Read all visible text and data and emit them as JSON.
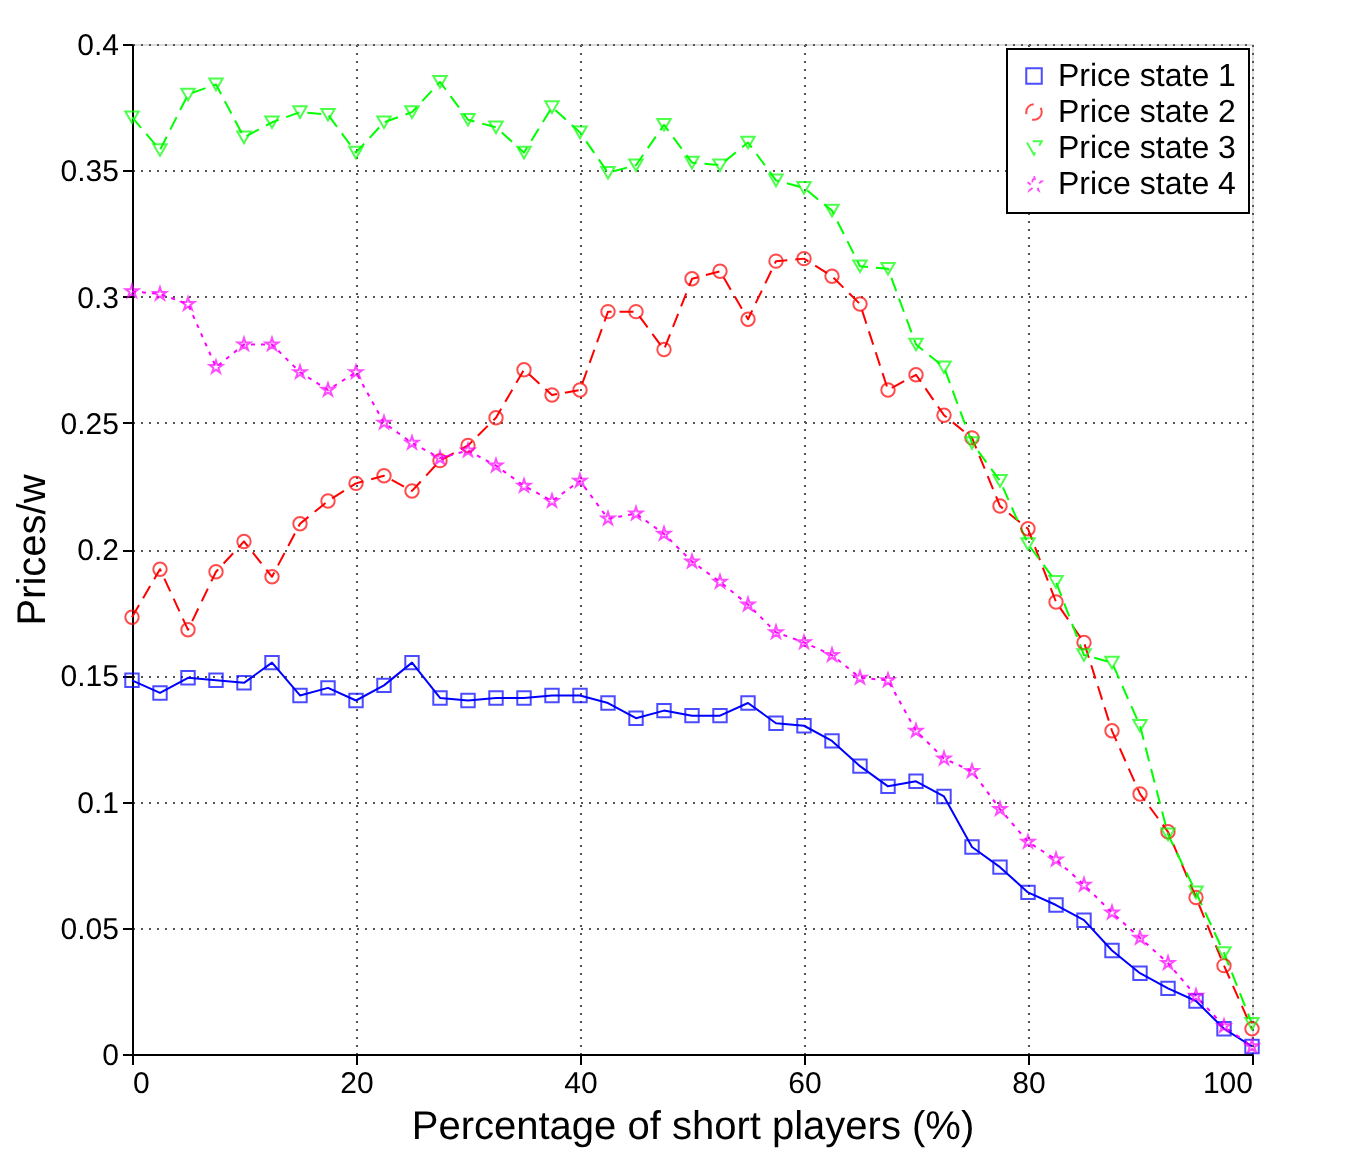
{
  "chart_data": {
    "type": "line",
    "xlabel": "Percentage of short players (%)",
    "ylabel": "Prices/w",
    "x": [
      0,
      2.5,
      5,
      7.5,
      10,
      12.5,
      15,
      17.5,
      20,
      22.5,
      25,
      27.5,
      30,
      32.5,
      35,
      37.5,
      40,
      42.5,
      45,
      47.5,
      50,
      52.5,
      55,
      57.5,
      60,
      62.5,
      65,
      67.5,
      70,
      72.5,
      75,
      77.5,
      80,
      82.5,
      85,
      87.5,
      90,
      92.5,
      95,
      97.5,
      100
    ],
    "series": [
      {
        "name": "Price state 1",
        "color": "#0000ff",
        "marker": "square",
        "line_style": "solid",
        "values": [
          0.148,
          0.143,
          0.149,
          0.148,
          0.147,
          0.155,
          0.142,
          0.145,
          0.14,
          0.146,
          0.155,
          0.141,
          0.14,
          0.141,
          0.141,
          0.142,
          0.142,
          0.139,
          0.133,
          0.136,
          0.134,
          0.134,
          0.139,
          0.131,
          0.13,
          0.124,
          0.114,
          0.106,
          0.108,
          0.102,
          0.082,
          0.074,
          0.064,
          0.059,
          0.053,
          0.041,
          0.032,
          0.026,
          0.021,
          0.01,
          0.003
        ]
      },
      {
        "name": "Price state 2",
        "color": "#ff0000",
        "marker": "circle",
        "line_style": "dashed",
        "values": [
          0.173,
          0.192,
          0.168,
          0.191,
          0.203,
          0.189,
          0.21,
          0.219,
          0.226,
          0.229,
          0.223,
          0.235,
          0.241,
          0.252,
          0.271,
          0.261,
          0.263,
          0.294,
          0.294,
          0.279,
          0.307,
          0.31,
          0.291,
          0.314,
          0.315,
          0.308,
          0.297,
          0.263,
          0.269,
          0.253,
          0.244,
          0.217,
          0.208,
          0.179,
          0.163,
          0.128,
          0.103,
          0.088,
          0.062,
          0.035,
          0.01
        ]
      },
      {
        "name": "Price state 3",
        "color": "#00ff00",
        "marker": "triangle",
        "line_style": "dashed",
        "values": [
          0.371,
          0.358,
          0.38,
          0.384,
          0.363,
          0.369,
          0.373,
          0.372,
          0.357,
          0.369,
          0.373,
          0.385,
          0.37,
          0.367,
          0.357,
          0.375,
          0.365,
          0.349,
          0.352,
          0.368,
          0.353,
          0.352,
          0.361,
          0.346,
          0.343,
          0.334,
          0.312,
          0.311,
          0.281,
          0.272,
          0.242,
          0.227,
          0.202,
          0.187,
          0.158,
          0.155,
          0.13,
          0.087,
          0.064,
          0.04,
          0.012
        ]
      },
      {
        "name": "Price state 4",
        "color": "#ff00ff",
        "marker": "star",
        "line_style": "dotted",
        "values": [
          0.302,
          0.301,
          0.297,
          0.272,
          0.281,
          0.281,
          0.27,
          0.263,
          0.27,
          0.25,
          0.242,
          0.236,
          0.239,
          0.233,
          0.225,
          0.219,
          0.227,
          0.212,
          0.214,
          0.206,
          0.195,
          0.187,
          0.178,
          0.167,
          0.163,
          0.158,
          0.149,
          0.148,
          0.128,
          0.117,
          0.112,
          0.097,
          0.084,
          0.077,
          0.067,
          0.056,
          0.046,
          0.036,
          0.023,
          0.011,
          0.003
        ]
      }
    ],
    "xlim": [
      0,
      100
    ],
    "xticks": [
      0,
      20,
      40,
      60,
      80,
      100
    ],
    "ylim": [
      0,
      0.4
    ],
    "yticks": [
      0,
      0.05,
      0.1,
      0.15,
      0.2,
      0.25,
      0.3,
      0.35,
      0.4
    ],
    "grid": true,
    "legend": "top right"
  }
}
